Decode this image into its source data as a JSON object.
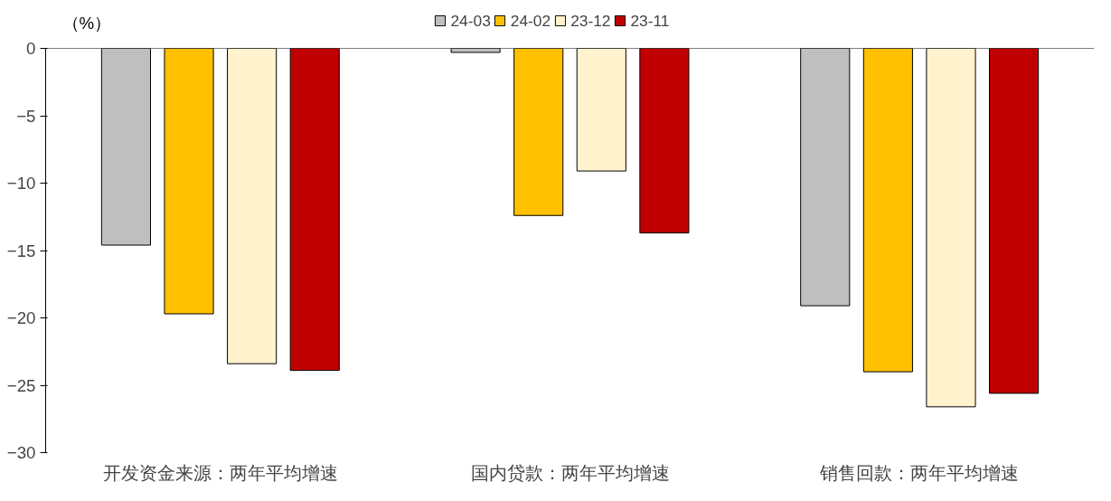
{
  "chart_data": {
    "type": "bar",
    "ylabel": "（%）",
    "categories": [
      "开发资金来源：两年平均增速",
      "国内贷款：两年平均增速",
      "销售回款：两年平均增速"
    ],
    "series": [
      {
        "name": "24-03",
        "color": "#bfbfbf",
        "values": [
          -14.6,
          -0.3,
          -19.1
        ]
      },
      {
        "name": "24-02",
        "color": "#ffc000",
        "values": [
          -19.7,
          -12.4,
          -24.0
        ]
      },
      {
        "name": "23-12",
        "color": "#fff2cc",
        "values": [
          -23.4,
          -9.1,
          -26.6
        ]
      },
      {
        "name": "23-11",
        "color": "#c00000",
        "values": [
          -23.9,
          -13.7,
          -25.6
        ]
      }
    ],
    "ylim": [
      -30,
      0
    ],
    "yticks": [
      -30,
      -25,
      -20,
      -15,
      -10,
      -5,
      0
    ],
    "grid": false,
    "legend": "top"
  }
}
